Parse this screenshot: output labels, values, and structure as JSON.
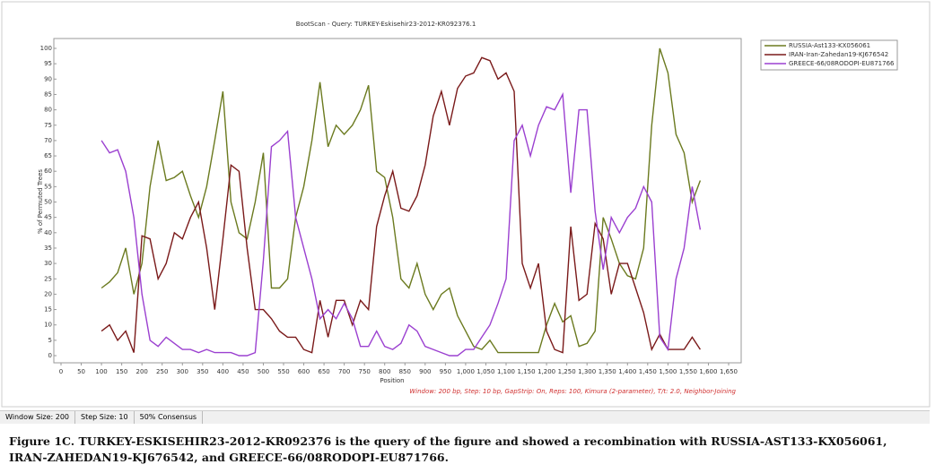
{
  "chart_data": {
    "type": "line",
    "title": "BootScan - Query: TURKEY-Eskisehir23-2012-KR092376.1",
    "x_label": "Position",
    "y_label": "% of Permuted Trees",
    "annotation": "Window: 200 bp, Step: 10 bp, GapStrip: On, Reps: 100, Kimura (2-parameter), T/t: 2.0, Neighbor-Joining",
    "legend": "top-right",
    "x": [
      100,
      120,
      140,
      160,
      180,
      200,
      220,
      240,
      260,
      280,
      300,
      320,
      340,
      360,
      380,
      400,
      420,
      440,
      460,
      480,
      500,
      520,
      540,
      560,
      580,
      600,
      620,
      640,
      660,
      680,
      700,
      720,
      740,
      760,
      780,
      800,
      820,
      840,
      860,
      880,
      900,
      920,
      940,
      960,
      980,
      1000,
      1020,
      1040,
      1060,
      1080,
      1100,
      1120,
      1140,
      1160,
      1180,
      1200,
      1220,
      1240,
      1260,
      1280,
      1300,
      1320,
      1340,
      1360,
      1380,
      1400,
      1420,
      1440,
      1460,
      1480,
      1500,
      1520,
      1540,
      1560,
      1580
    ],
    "series": [
      {
        "name": "RUSSIA-Ast133-KX056061",
        "color": "#6b7a1f",
        "values": [
          22,
          24,
          27,
          35,
          20,
          30,
          55,
          70,
          57,
          58,
          60,
          52,
          45,
          55,
          70,
          86,
          50,
          40,
          38,
          50,
          66,
          22,
          22,
          25,
          45,
          55,
          70,
          89,
          68,
          75,
          72,
          75,
          80,
          88,
          60,
          58,
          45,
          25,
          22,
          30,
          20,
          15,
          20,
          22,
          13,
          8,
          3,
          2,
          5,
          1,
          1,
          1,
          1,
          1,
          1,
          10,
          17,
          11,
          13,
          3,
          4,
          8,
          45,
          38,
          30,
          26,
          25,
          35,
          75,
          100,
          92,
          72,
          66,
          50,
          57
        ]
      },
      {
        "name": "IRAN-Iran-Zahedan19-KJ676542",
        "color": "#7a1a1a",
        "values": [
          8,
          10,
          5,
          8,
          1,
          39,
          38,
          25,
          30,
          40,
          38,
          45,
          50,
          35,
          15,
          38,
          62,
          60,
          35,
          15,
          15,
          12,
          8,
          6,
          6,
          2,
          1,
          18,
          6,
          18,
          18,
          10,
          18,
          15,
          42,
          52,
          60,
          48,
          47,
          52,
          62,
          78,
          86,
          75,
          87,
          91,
          92,
          97,
          96,
          90,
          92,
          86,
          30,
          22,
          30,
          8,
          2,
          1,
          42,
          18,
          20,
          43,
          38,
          20,
          30,
          30,
          22,
          14,
          2,
          7,
          2,
          2,
          2,
          6,
          2
        ]
      },
      {
        "name": "GREECE-66/08RODOPI-EU871766",
        "color": "#9b40d0",
        "values": [
          70,
          66,
          67,
          60,
          45,
          20,
          5,
          3,
          6,
          4,
          2,
          2,
          1,
          2,
          1,
          1,
          1,
          0,
          0,
          1,
          31,
          68,
          70,
          73,
          45,
          35,
          25,
          12,
          15,
          12,
          17,
          12,
          3,
          3,
          8,
          3,
          2,
          4,
          10,
          8,
          3,
          2,
          1,
          0,
          0,
          2,
          2,
          6,
          10,
          17,
          25,
          70,
          75,
          65,
          75,
          81,
          80,
          85,
          53,
          80,
          80,
          47,
          28,
          45,
          40,
          45,
          48,
          55,
          50,
          6,
          2,
          25,
          35,
          55,
          41
        ]
      }
    ],
    "xlim": [
      0,
      1650
    ],
    "xticks": [
      0,
      50,
      100,
      150,
      200,
      250,
      300,
      350,
      400,
      450,
      500,
      550,
      600,
      650,
      700,
      750,
      800,
      850,
      900,
      950,
      {
        "value": 1000,
        "label": "1,000"
      },
      {
        "value": 1050,
        "label": "1,050"
      },
      {
        "value": 1100,
        "label": "1,100"
      },
      {
        "value": 1150,
        "label": "1,150"
      },
      {
        "value": 1200,
        "label": "1,200"
      },
      {
        "value": 1250,
        "label": "1,250"
      },
      {
        "value": 1300,
        "label": "1,300"
      },
      {
        "value": 1350,
        "label": "1,350"
      },
      {
        "value": 1400,
        "label": "1,400"
      },
      {
        "value": 1450,
        "label": "1,450"
      },
      {
        "value": 1500,
        "label": "1,500"
      },
      {
        "value": 1550,
        "label": "1,550"
      },
      {
        "value": 1600,
        "label": "1,600"
      },
      {
        "value": 1650,
        "label": "1,650"
      }
    ],
    "ylim": [
      0,
      100
    ],
    "yticks": [
      0,
      5,
      10,
      15,
      20,
      25,
      30,
      35,
      40,
      45,
      50,
      55,
      60,
      65,
      70,
      75,
      80,
      85,
      90,
      95,
      100
    ]
  },
  "status_bar": [
    "Window Size: 200",
    "Step Size: 10",
    "50% Consensus"
  ],
  "caption": "Figure 1C. TURKEY-ESKISEHIR23-2012-KR092376 is the query of the figure and showed a recombination with RUSSIA-AST133-KX056061, IRAN-ZAHEDAN19-KJ676542, and GREECE-66/08RODOPI-EU871766."
}
